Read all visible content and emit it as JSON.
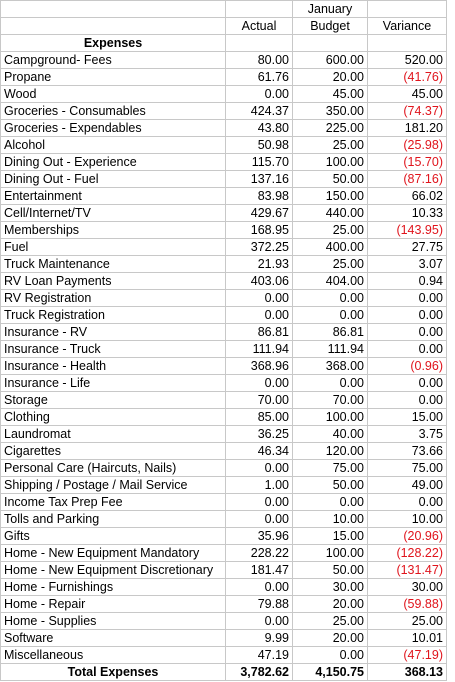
{
  "header": {
    "month": "January",
    "col_actual": "Actual",
    "col_budget": "Budget",
    "col_variance": "Variance",
    "section_title": "Expenses"
  },
  "colors": {
    "negative": "#e0141c",
    "grid": "#c8c8c8"
  },
  "rows": [
    {
      "label": "Campground- Fees",
      "actual": "80.00",
      "budget": "600.00",
      "variance": "520.00",
      "neg": false
    },
    {
      "label": "Propane",
      "actual": "61.76",
      "budget": "20.00",
      "variance": "(41.76)",
      "neg": true
    },
    {
      "label": "Wood",
      "actual": "0.00",
      "budget": "45.00",
      "variance": "45.00",
      "neg": false
    },
    {
      "label": "Groceries - Consumables",
      "actual": "424.37",
      "budget": "350.00",
      "variance": "(74.37)",
      "neg": true
    },
    {
      "label": "Groceries - Expendables",
      "actual": "43.80",
      "budget": "225.00",
      "variance": "181.20",
      "neg": false
    },
    {
      "label": "Alcohol",
      "actual": "50.98",
      "budget": "25.00",
      "variance": "(25.98)",
      "neg": true
    },
    {
      "label": "Dining Out - Experience",
      "actual": "115.70",
      "budget": "100.00",
      "variance": "(15.70)",
      "neg": true
    },
    {
      "label": "Dining Out - Fuel",
      "actual": "137.16",
      "budget": "50.00",
      "variance": "(87.16)",
      "neg": true
    },
    {
      "label": "Entertainment",
      "actual": "83.98",
      "budget": "150.00",
      "variance": "66.02",
      "neg": false
    },
    {
      "label": "Cell/Internet/TV",
      "actual": "429.67",
      "budget": "440.00",
      "variance": "10.33",
      "neg": false
    },
    {
      "label": "Memberships",
      "actual": "168.95",
      "budget": "25.00",
      "variance": "(143.95)",
      "neg": true
    },
    {
      "label": "Fuel",
      "actual": "372.25",
      "budget": "400.00",
      "variance": "27.75",
      "neg": false
    },
    {
      "label": "Truck Maintenance",
      "actual": "21.93",
      "budget": "25.00",
      "variance": "3.07",
      "neg": false
    },
    {
      "label": "RV Loan Payments",
      "actual": "403.06",
      "budget": "404.00",
      "variance": "0.94",
      "neg": false
    },
    {
      "label": "RV Registration",
      "actual": "0.00",
      "budget": "0.00",
      "variance": "0.00",
      "neg": false
    },
    {
      "label": "Truck Registration",
      "actual": "0.00",
      "budget": "0.00",
      "variance": "0.00",
      "neg": false
    },
    {
      "label": "Insurance - RV",
      "actual": "86.81",
      "budget": "86.81",
      "variance": "0.00",
      "neg": false
    },
    {
      "label": "Insurance - Truck",
      "actual": "111.94",
      "budget": "111.94",
      "variance": "0.00",
      "neg": false
    },
    {
      "label": "Insurance - Health",
      "actual": "368.96",
      "budget": "368.00",
      "variance": "(0.96)",
      "neg": true
    },
    {
      "label": "Insurance - Life",
      "actual": "0.00",
      "budget": "0.00",
      "variance": "0.00",
      "neg": false
    },
    {
      "label": "Storage",
      "actual": "70.00",
      "budget": "70.00",
      "variance": "0.00",
      "neg": false
    },
    {
      "label": "Clothing",
      "actual": "85.00",
      "budget": "100.00",
      "variance": "15.00",
      "neg": false
    },
    {
      "label": "Laundromat",
      "actual": "36.25",
      "budget": "40.00",
      "variance": "3.75",
      "neg": false
    },
    {
      "label": "Cigarettes",
      "actual": "46.34",
      "budget": "120.00",
      "variance": "73.66",
      "neg": false
    },
    {
      "label": "Personal Care (Haircuts, Nails)",
      "actual": "0.00",
      "budget": "75.00",
      "variance": "75.00",
      "neg": false
    },
    {
      "label": "Shipping / Postage / Mail Service",
      "actual": "1.00",
      "budget": "50.00",
      "variance": "49.00",
      "neg": false
    },
    {
      "label": "Income Tax Prep Fee",
      "actual": "0.00",
      "budget": "0.00",
      "variance": "0.00",
      "neg": false
    },
    {
      "label": "Tolls and Parking",
      "actual": "0.00",
      "budget": "10.00",
      "variance": "10.00",
      "neg": false
    },
    {
      "label": "Gifts",
      "actual": "35.96",
      "budget": "15.00",
      "variance": "(20.96)",
      "neg": true
    },
    {
      "label": "Home - New Equipment Mandatory",
      "actual": "228.22",
      "budget": "100.00",
      "variance": "(128.22)",
      "neg": true
    },
    {
      "label": "Home - New Equipment Discretionary",
      "actual": "181.47",
      "budget": "50.00",
      "variance": "(131.47)",
      "neg": true
    },
    {
      "label": "Home - Furnishings",
      "actual": "0.00",
      "budget": "30.00",
      "variance": "30.00",
      "neg": false
    },
    {
      "label": "Home - Repair",
      "actual": "79.88",
      "budget": "20.00",
      "variance": "(59.88)",
      "neg": true
    },
    {
      "label": "Home - Supplies",
      "actual": "0.00",
      "budget": "25.00",
      "variance": "25.00",
      "neg": false
    },
    {
      "label": "Software",
      "actual": "9.99",
      "budget": "20.00",
      "variance": "10.01",
      "neg": false
    },
    {
      "label": "Miscellaneous",
      "actual": "47.19",
      "budget": "0.00",
      "variance": "(47.19)",
      "neg": true
    }
  ],
  "total": {
    "label": "Total Expenses",
    "actual": "3,782.62",
    "budget": "4,150.75",
    "variance": "368.13"
  }
}
